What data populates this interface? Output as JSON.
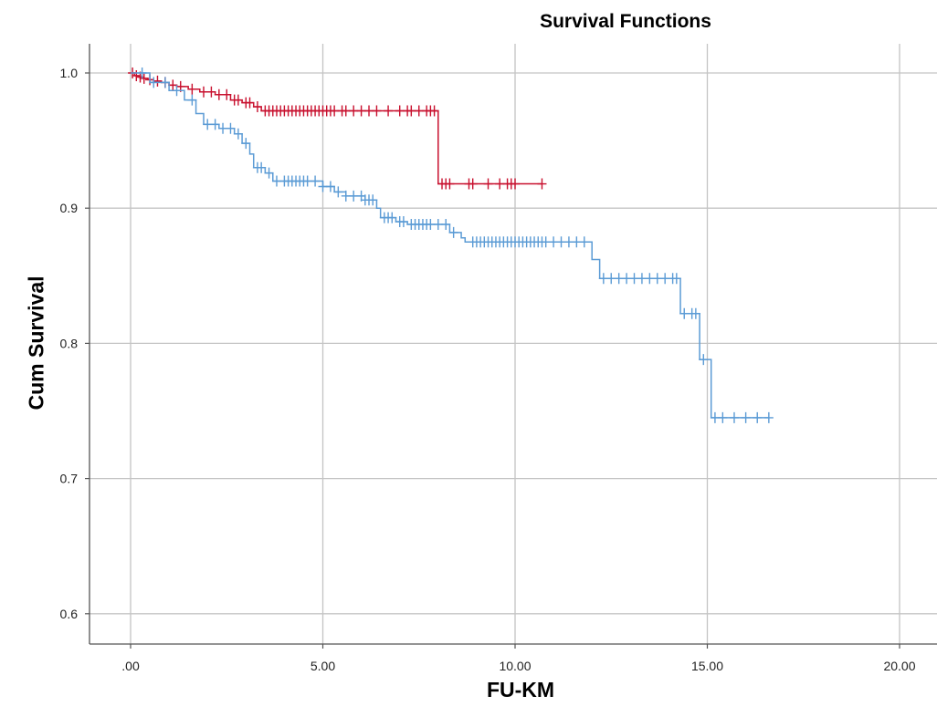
{
  "chart_data": {
    "type": "line",
    "title": "Survival Functions",
    "xlabel": "FU-KM",
    "ylabel": "Cum Survival",
    "xlim": [
      0,
      20
    ],
    "ylim": [
      0.58,
      1.02
    ],
    "x_ticks": [
      0,
      5,
      10,
      15,
      20
    ],
    "x_tick_labels": [
      ".00",
      "5.00",
      "10.00",
      "15.00",
      "20.00"
    ],
    "y_ticks": [
      0.6,
      0.7,
      0.8,
      0.9,
      1.0
    ],
    "y_tick_labels": [
      "0.6",
      "0.7",
      "0.8",
      "0.9",
      "1.0"
    ],
    "grid": true,
    "series": [
      {
        "color": "#c8102e",
        "points": [
          [
            0,
            1.0
          ],
          [
            0.1,
            0.998
          ],
          [
            0.2,
            0.997
          ],
          [
            0.3,
            0.996
          ],
          [
            0.45,
            0.995
          ],
          [
            0.6,
            0.994
          ],
          [
            0.8,
            0.993
          ],
          [
            1.0,
            0.991
          ],
          [
            1.2,
            0.99
          ],
          [
            1.5,
            0.988
          ],
          [
            1.8,
            0.986
          ],
          [
            2.2,
            0.984
          ],
          [
            2.6,
            0.98
          ],
          [
            2.9,
            0.978
          ],
          [
            3.2,
            0.975
          ],
          [
            3.4,
            0.972
          ],
          [
            8.0,
            0.972
          ],
          [
            8.0,
            0.918
          ],
          [
            10.7,
            0.918
          ]
        ],
        "censored_x": [
          0.05,
          0.15,
          0.25,
          0.35,
          0.5,
          0.7,
          0.9,
          1.1,
          1.3,
          1.6,
          1.9,
          2.1,
          2.3,
          2.5,
          2.7,
          2.8,
          3.0,
          3.1,
          3.3,
          3.5,
          3.6,
          3.7,
          3.8,
          3.9,
          4.0,
          4.1,
          4.2,
          4.3,
          4.4,
          4.5,
          4.6,
          4.7,
          4.8,
          4.9,
          5.0,
          5.1,
          5.2,
          5.3,
          5.5,
          5.6,
          5.8,
          6.0,
          6.2,
          6.4,
          6.7,
          7.0,
          7.2,
          7.3,
          7.5,
          7.7,
          7.8,
          7.9,
          8.1,
          8.2,
          8.3,
          8.8,
          8.9,
          9.3,
          9.6,
          9.8,
          9.9,
          10.0,
          10.7
        ]
      },
      {
        "color": "#5b9bd5",
        "points": [
          [
            0,
            1.0
          ],
          [
            0.5,
            0.993
          ],
          [
            1.0,
            0.987
          ],
          [
            1.4,
            0.98
          ],
          [
            1.7,
            0.97
          ],
          [
            1.9,
            0.962
          ],
          [
            2.3,
            0.959
          ],
          [
            2.7,
            0.955
          ],
          [
            2.9,
            0.948
          ],
          [
            3.1,
            0.94
          ],
          [
            3.2,
            0.93
          ],
          [
            3.5,
            0.926
          ],
          [
            3.7,
            0.92
          ],
          [
            5.0,
            0.916
          ],
          [
            5.3,
            0.912
          ],
          [
            5.6,
            0.909
          ],
          [
            6.1,
            0.906
          ],
          [
            6.4,
            0.9
          ],
          [
            6.5,
            0.893
          ],
          [
            6.9,
            0.89
          ],
          [
            7.2,
            0.888
          ],
          [
            8.3,
            0.882
          ],
          [
            8.6,
            0.878
          ],
          [
            8.7,
            0.875
          ],
          [
            12.0,
            0.875
          ],
          [
            12.0,
            0.862
          ],
          [
            12.2,
            0.862
          ],
          [
            12.2,
            0.848
          ],
          [
            14.3,
            0.848
          ],
          [
            14.3,
            0.822
          ],
          [
            14.8,
            0.822
          ],
          [
            14.8,
            0.788
          ],
          [
            15.1,
            0.788
          ],
          [
            15.1,
            0.745
          ],
          [
            16.6,
            0.745
          ]
        ],
        "censored_x": [
          0.3,
          0.6,
          0.9,
          1.2,
          1.6,
          2.0,
          2.2,
          2.4,
          2.6,
          2.8,
          3.0,
          3.3,
          3.4,
          3.6,
          3.8,
          4.0,
          4.1,
          4.2,
          4.3,
          4.4,
          4.5,
          4.6,
          4.8,
          5.0,
          5.2,
          5.4,
          5.6,
          5.8,
          6.0,
          6.1,
          6.2,
          6.3,
          6.6,
          6.7,
          6.8,
          7.0,
          7.1,
          7.3,
          7.4,
          7.5,
          7.6,
          7.7,
          7.8,
          8.0,
          8.2,
          8.4,
          8.9,
          9.0,
          9.1,
          9.2,
          9.3,
          9.4,
          9.5,
          9.6,
          9.7,
          9.8,
          9.9,
          10.0,
          10.1,
          10.2,
          10.3,
          10.4,
          10.5,
          10.6,
          10.7,
          10.8,
          11.0,
          11.2,
          11.4,
          11.6,
          11.8,
          12.3,
          12.5,
          12.7,
          12.9,
          13.1,
          13.3,
          13.5,
          13.7,
          13.9,
          14.1,
          14.2,
          14.4,
          14.6,
          14.7,
          14.9,
          15.2,
          15.4,
          15.7,
          16.0,
          16.3,
          16.6
        ]
      }
    ]
  }
}
